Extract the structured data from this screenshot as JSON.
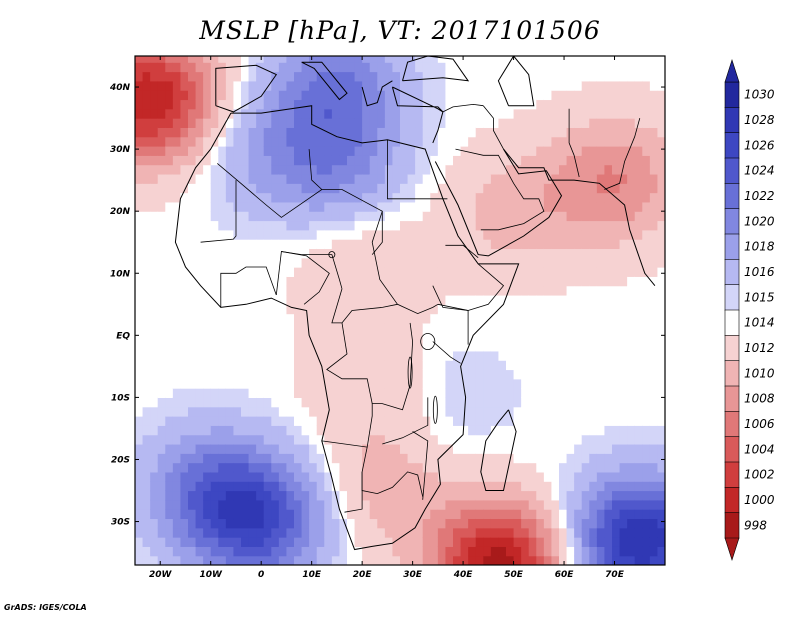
{
  "title": "MSLP [hPa], VT: 2017101506",
  "footer": "GrADS: IGES/COLA",
  "axes": {
    "lon_range": [
      -25,
      80
    ],
    "lat_range": [
      -37,
      45
    ],
    "x_ticks": [
      {
        "value": -20,
        "label": "20W"
      },
      {
        "value": -10,
        "label": "10W"
      },
      {
        "value": 0,
        "label": "0"
      },
      {
        "value": 10,
        "label": "10E"
      },
      {
        "value": 20,
        "label": "20E"
      },
      {
        "value": 30,
        "label": "30E"
      },
      {
        "value": 40,
        "label": "40E"
      },
      {
        "value": 50,
        "label": "50E"
      },
      {
        "value": 60,
        "label": "60E"
      },
      {
        "value": 70,
        "label": "70E"
      }
    ],
    "y_ticks": [
      {
        "value": 40,
        "label": "40N"
      },
      {
        "value": 30,
        "label": "30N"
      },
      {
        "value": 20,
        "label": "20N"
      },
      {
        "value": 10,
        "label": "10N"
      },
      {
        "value": 0,
        "label": "EQ"
      },
      {
        "value": -10,
        "label": "10S"
      },
      {
        "value": -20,
        "label": "20S"
      },
      {
        "value": -30,
        "label": "30S"
      }
    ]
  },
  "colorbar": {
    "levels": [
      "1030",
      "1028",
      "1026",
      "1024",
      "1022",
      "1020",
      "1018",
      "1016",
      "1015",
      "1014",
      "1012",
      "1010",
      "1008",
      "1006",
      "1004",
      "1002",
      "1000",
      "998"
    ],
    "colors": [
      "#22289e",
      "#3038b4",
      "#3d47c2",
      "#5058cc",
      "#6870d7",
      "#8187e0",
      "#9ba0ea",
      "#b6b9f2",
      "#d3d5f8",
      "#ffffff",
      "#f6d2d2",
      "#f0b4b4",
      "#e89696",
      "#e07878",
      "#d95a5a",
      "#d03e3e",
      "#c22727",
      "#a81a1a"
    ]
  },
  "pressure_field": {
    "background_hpa": 1014.5,
    "centres": [
      {
        "name": "mediterranean-high",
        "lon": 15,
        "lat": 40,
        "hpa": 1022
      },
      {
        "name": "sahara-high",
        "lon": 15,
        "lat": 27,
        "hpa": 1020
      },
      {
        "name": "west-africa-high",
        "lon": 0,
        "lat": 30,
        "hpa": 1018
      },
      {
        "name": "south-atlantic-high",
        "lon": -10,
        "lat": -25,
        "hpa": 1022
      },
      {
        "name": "south-atlantic-core",
        "lon": 0,
        "lat": -30,
        "hpa": 1025
      },
      {
        "name": "mascarene-high",
        "lon": 75,
        "lat": -33,
        "hpa": 1030
      },
      {
        "name": "east-africa-ridge",
        "lon": 38,
        "lat": -10,
        "hpa": 1016
      },
      {
        "name": "arabia-low",
        "lon": 50,
        "lat": 20,
        "hpa": 1011
      },
      {
        "name": "persia-low",
        "lon": 70,
        "lat": 25,
        "hpa": 1008
      },
      {
        "name": "sahel-trough",
        "lon": 20,
        "lat": 12,
        "hpa": 1012
      },
      {
        "name": "congo-low",
        "lon": 22,
        "lat": -8,
        "hpa": 1012
      },
      {
        "name": "kalahari-low",
        "lon": 25,
        "lat": -25,
        "hpa": 1011
      },
      {
        "name": "azores-low",
        "lon": -22,
        "lat": 38,
        "hpa": 1000
      },
      {
        "name": "indian-ocean-low",
        "lon": 47,
        "lat": -37,
        "hpa": 999
      }
    ]
  },
  "coastlines": [
    {
      "name": "africa-coast",
      "points": [
        [
          -6,
          35.8
        ],
        [
          -10,
          30
        ],
        [
          -13,
          27
        ],
        [
          -16,
          22
        ],
        [
          -17,
          15
        ],
        [
          -15,
          11
        ],
        [
          -12,
          8
        ],
        [
          -8,
          4.5
        ],
        [
          -3,
          5
        ],
        [
          2,
          6
        ],
        [
          6,
          4.5
        ],
        [
          9,
          4
        ],
        [
          9.5,
          0
        ],
        [
          12,
          -5
        ],
        [
          13.5,
          -12
        ],
        [
          12,
          -17
        ],
        [
          14,
          -23
        ],
        [
          15.5,
          -28
        ],
        [
          18.5,
          -34.5
        ],
        [
          22,
          -34
        ],
        [
          26,
          -33.5
        ],
        [
          30.5,
          -31
        ],
        [
          32.5,
          -28
        ],
        [
          35.5,
          -24
        ],
        [
          35,
          -20
        ],
        [
          40,
          -16
        ],
        [
          40.5,
          -10
        ],
        [
          39.5,
          -5
        ],
        [
          42,
          0
        ],
        [
          48,
          5
        ],
        [
          51,
          11.5
        ],
        [
          43,
          11.5
        ],
        [
          39,
          16
        ],
        [
          36,
          22
        ],
        [
          32.5,
          30
        ],
        [
          25,
          31.5
        ],
        [
          20,
          31
        ],
        [
          15,
          32
        ],
        [
          10,
          34
        ],
        [
          10,
          37
        ],
        [
          0,
          35.8
        ],
        [
          -6,
          35.8
        ]
      ]
    },
    {
      "name": "madagascar-coast",
      "points": [
        [
          49,
          -12
        ],
        [
          50.5,
          -15.5
        ],
        [
          48,
          -25
        ],
        [
          44.5,
          -25
        ],
        [
          43.5,
          -22
        ],
        [
          44.5,
          -17
        ],
        [
          47,
          -14
        ],
        [
          49,
          -12
        ]
      ]
    },
    {
      "name": "arabia-coast",
      "points": [
        [
          34.5,
          28
        ],
        [
          39,
          21
        ],
        [
          43,
          13
        ],
        [
          45,
          12.8
        ],
        [
          52,
          16
        ],
        [
          57,
          19
        ],
        [
          59.5,
          22.5
        ],
        [
          56.5,
          26.5
        ],
        [
          51,
          26
        ],
        [
          48,
          30
        ]
      ]
    },
    {
      "name": "iberia-coast",
      "points": [
        [
          -9,
          37
        ],
        [
          -9,
          43
        ],
        [
          -1,
          43.5
        ],
        [
          3,
          42
        ],
        [
          0,
          38.5
        ],
        [
          -5.5,
          36
        ],
        [
          -9,
          37
        ]
      ]
    },
    {
      "name": "italy-coast",
      "points": [
        [
          8,
          44
        ],
        [
          12,
          44
        ],
        [
          16,
          40
        ],
        [
          17,
          39
        ],
        [
          15.5,
          38
        ],
        [
          13,
          40.5
        ],
        [
          10.5,
          43
        ],
        [
          8,
          44
        ]
      ]
    },
    {
      "name": "anatolia-coast",
      "points": [
        [
          26,
          40
        ],
        [
          35,
          36.5
        ],
        [
          36,
          36
        ],
        [
          35,
          36.8
        ],
        [
          27,
          37
        ],
        [
          26,
          40
        ]
      ]
    },
    {
      "name": "levant-coast",
      "points": [
        [
          36,
          36
        ],
        [
          35,
          33
        ],
        [
          34,
          31
        ]
      ]
    },
    {
      "name": "persian-gulf-coast",
      "points": [
        [
          48,
          30
        ],
        [
          51,
          27
        ],
        [
          56,
          27
        ],
        [
          57,
          25
        ],
        [
          62,
          25
        ],
        [
          67,
          24.5
        ],
        [
          72,
          21
        ],
        [
          73,
          17
        ],
        [
          76,
          10
        ],
        [
          78,
          8
        ]
      ]
    },
    {
      "name": "caspian-coast",
      "points": [
        [
          49,
          37
        ],
        [
          47,
          41
        ],
        [
          50,
          45
        ],
        [
          53,
          42
        ],
        [
          54,
          37
        ],
        [
          49,
          37
        ]
      ]
    },
    {
      "name": "black-sea-coast",
      "points": [
        [
          28,
          41
        ],
        [
          29,
          44
        ],
        [
          33,
          45
        ],
        [
          38,
          44.5
        ],
        [
          41,
          41
        ],
        [
          36,
          41.5
        ],
        [
          28,
          41
        ]
      ]
    },
    {
      "name": "greece-coast",
      "points": [
        [
          20,
          40
        ],
        [
          21,
          37
        ],
        [
          23,
          37.5
        ],
        [
          24,
          40
        ],
        [
          26,
          41
        ]
      ]
    }
  ],
  "water_bodies": [
    {
      "name": "lake-victoria",
      "lon": 33,
      "lat": -1,
      "rx": 1.4,
      "ry": 1.3
    },
    {
      "name": "lake-tanganyika",
      "lon": 29.5,
      "lat": -6,
      "rx": 0.4,
      "ry": 2.5
    },
    {
      "name": "lake-malawi",
      "lon": 34.5,
      "lat": -12,
      "rx": 0.4,
      "ry": 2.2
    },
    {
      "name": "lake-chad",
      "lon": 14,
      "lat": 13,
      "rx": 0.6,
      "ry": 0.5
    }
  ],
  "borders": [
    {
      "name": "border-sahara-w",
      "points": [
        [
          -8.7,
          27.7
        ],
        [
          -4.8,
          25
        ],
        [
          1,
          21
        ],
        [
          4,
          19
        ],
        [
          12,
          23.5
        ],
        [
          16,
          23.5
        ],
        [
          24,
          20
        ],
        [
          24,
          15
        ],
        [
          22,
          13
        ]
      ]
    },
    {
      "name": "border-algeria-libya",
      "points": [
        [
          9.5,
          30
        ],
        [
          10,
          25
        ],
        [
          12,
          23.5
        ]
      ]
    },
    {
      "name": "border-libya-egypt",
      "points": [
        [
          25,
          31.5
        ],
        [
          25,
          22
        ],
        [
          36.9,
          22
        ]
      ]
    },
    {
      "name": "border-sudan-chad",
      "points": [
        [
          24,
          20
        ],
        [
          22,
          15
        ],
        [
          23.5,
          9
        ],
        [
          27,
          5
        ],
        [
          31,
          3.5
        ],
        [
          34,
          4.5
        ],
        [
          35,
          5
        ]
      ]
    },
    {
      "name": "border-mali-mauritania",
      "points": [
        [
          -12,
          15
        ],
        [
          -5.5,
          15.5
        ],
        [
          -5,
          16
        ],
        [
          -5,
          25
        ]
      ]
    },
    {
      "name": "border-niger-chad",
      "points": [
        [
          4,
          13.5
        ],
        [
          8,
          13
        ],
        [
          14,
          13
        ],
        [
          15.5,
          9
        ],
        [
          16,
          7.5
        ]
      ]
    },
    {
      "name": "border-nigeria",
      "points": [
        [
          3,
          6.5
        ],
        [
          4,
          13.5
        ],
        [
          9,
          12.8
        ],
        [
          13.5,
          10
        ],
        [
          11.5,
          7
        ],
        [
          8.5,
          5
        ]
      ]
    },
    {
      "name": "border-west-africa",
      "points": [
        [
          -8,
          4.5
        ],
        [
          -8,
          10
        ],
        [
          -5,
          10
        ],
        [
          -3,
          11
        ],
        [
          1,
          11
        ],
        [
          3,
          6.5
        ]
      ]
    },
    {
      "name": "border-central",
      "points": [
        [
          16,
          7.5
        ],
        [
          14,
          2
        ],
        [
          16,
          2
        ],
        [
          18,
          4
        ],
        [
          24,
          4.5
        ],
        [
          27,
          5
        ]
      ]
    },
    {
      "name": "border-congo-drc",
      "points": [
        [
          16,
          2
        ],
        [
          17,
          -3
        ],
        [
          13,
          -5.5
        ],
        [
          16,
          -7
        ],
        [
          21,
          -7
        ],
        [
          22,
          -11
        ],
        [
          24,
          -11
        ],
        [
          28,
          -12
        ],
        [
          29.5,
          -8
        ],
        [
          30,
          -1
        ],
        [
          29.5,
          2
        ]
      ]
    },
    {
      "name": "border-angola-zambia",
      "points": [
        [
          22,
          -11
        ],
        [
          22,
          -13
        ],
        [
          21,
          -18
        ],
        [
          12,
          -17
        ]
      ]
    },
    {
      "name": "border-namibia-botswana",
      "points": [
        [
          21,
          -18
        ],
        [
          20,
          -22
        ],
        [
          20,
          -28
        ],
        [
          16.5,
          -28.5
        ]
      ]
    },
    {
      "name": "border-botswana-sa",
      "points": [
        [
          20,
          -22
        ],
        [
          20,
          -25
        ],
        [
          23,
          -25.5
        ],
        [
          26,
          -24.5
        ],
        [
          29,
          -22
        ],
        [
          31,
          -22.5
        ],
        [
          32,
          -26
        ]
      ]
    },
    {
      "name": "border-zambia-zimbabwe",
      "points": [
        [
          24,
          -17.5
        ],
        [
          28,
          -16.5
        ],
        [
          33,
          -14.5
        ],
        [
          33,
          -10
        ]
      ]
    },
    {
      "name": "border-mozambique",
      "points": [
        [
          30,
          -15.5
        ],
        [
          33,
          -17
        ],
        [
          32.5,
          -22
        ],
        [
          32,
          -26.5
        ]
      ]
    },
    {
      "name": "border-tanzania-kenya",
      "points": [
        [
          34,
          -1
        ],
        [
          37.5,
          -3.5
        ],
        [
          39.5,
          -4.5
        ]
      ]
    },
    {
      "name": "border-kenya-somalia",
      "points": [
        [
          35,
          5
        ],
        [
          41,
          4
        ],
        [
          41,
          -1.5
        ]
      ]
    },
    {
      "name": "border-ethiopia-somalia",
      "points": [
        [
          34,
          8
        ],
        [
          36,
          4.5
        ],
        [
          41,
          4
        ],
        [
          45,
          5
        ],
        [
          48,
          8
        ],
        [
          43,
          11.5
        ]
      ]
    },
    {
      "name": "border-ethiopia-eritrea",
      "points": [
        [
          36.5,
          14.5
        ],
        [
          40,
          14.5
        ],
        [
          43,
          12.5
        ]
      ]
    },
    {
      "name": "border-arabia",
      "points": [
        [
          38.5,
          30
        ],
        [
          44,
          29
        ],
        [
          47,
          29
        ],
        [
          50,
          24.5
        ],
        [
          52,
          22
        ],
        [
          55,
          22
        ],
        [
          56,
          20
        ],
        [
          52,
          18
        ],
        [
          47,
          17
        ],
        [
          43.5,
          17
        ]
      ]
    },
    {
      "name": "border-iran-iraq",
      "points": [
        [
          44,
          37
        ],
        [
          46,
          35
        ],
        [
          46,
          33
        ],
        [
          48,
          30
        ]
      ]
    },
    {
      "name": "border-iran-afghanistan",
      "points": [
        [
          61,
          36.5
        ],
        [
          61,
          31
        ],
        [
          62,
          29
        ],
        [
          63,
          25.5
        ]
      ]
    },
    {
      "name": "border-pakistan-india",
      "points": [
        [
          68,
          23.5
        ],
        [
          71,
          24.5
        ],
        [
          72,
          28
        ],
        [
          74,
          32
        ],
        [
          75,
          35
        ]
      ]
    },
    {
      "name": "border-turkey-syria",
      "points": [
        [
          36,
          36
        ],
        [
          38,
          36.8
        ],
        [
          42,
          37.2
        ],
        [
          44,
          37
        ]
      ]
    }
  ]
}
